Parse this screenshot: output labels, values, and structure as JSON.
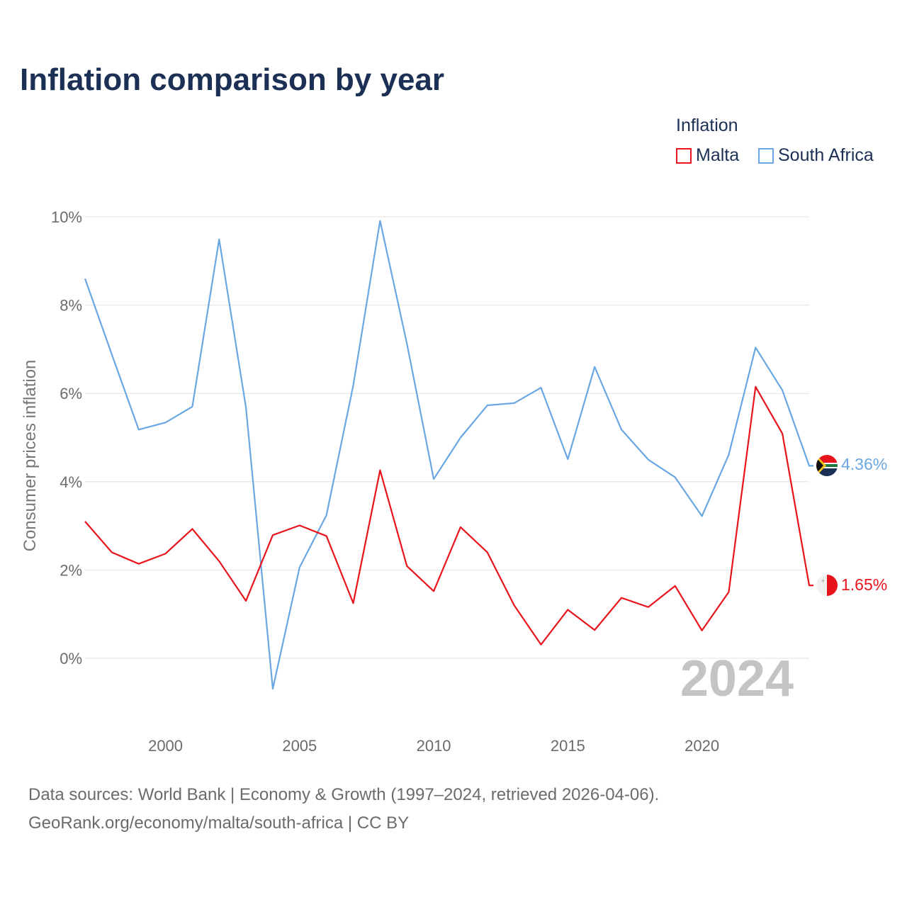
{
  "chart_data": {
    "type": "line",
    "title": "Inflation comparison by year",
    "legend_title": "Inflation",
    "ylabel": "Consumer prices inflation",
    "xlabel": "",
    "x": [
      1997,
      1998,
      1999,
      2000,
      2001,
      2002,
      2003,
      2004,
      2005,
      2006,
      2007,
      2008,
      2009,
      2010,
      2011,
      2012,
      2013,
      2014,
      2015,
      2016,
      2017,
      2018,
      2019,
      2020,
      2021,
      2022,
      2023,
      2024
    ],
    "series": [
      {
        "name": "Malta",
        "color": "#e8141c",
        "values": [
          3.1,
          2.4,
          2.14,
          2.37,
          2.93,
          2.2,
          1.3,
          2.79,
          3.01,
          2.77,
          1.25,
          4.26,
          2.09,
          1.52,
          2.97,
          2.4,
          1.2,
          0.31,
          1.1,
          0.64,
          1.37,
          1.16,
          1.64,
          0.63,
          1.5,
          6.15,
          5.09,
          1.65
        ],
        "end_label": "1.65%"
      },
      {
        "name": "South Africa",
        "color": "#6aa7e2",
        "values": [
          8.6,
          6.88,
          5.18,
          5.34,
          5.7,
          9.49,
          5.68,
          -0.69,
          2.06,
          3.24,
          6.18,
          9.91,
          7.13,
          4.06,
          5.0,
          5.73,
          5.78,
          6.13,
          4.51,
          6.6,
          5.18,
          4.5,
          4.1,
          3.22,
          4.61,
          7.04,
          6.07,
          4.36
        ],
        "end_label": "4.36%"
      }
    ],
    "xlim": [
      1997,
      2024
    ],
    "ylim": [
      -1.5,
      10
    ],
    "y_ticks": [
      0,
      2,
      4,
      6,
      8,
      10
    ],
    "y_tick_labels": [
      "0%",
      "2%",
      "4%",
      "6%",
      "8%",
      "10%"
    ],
    "x_ticks": [
      2000,
      2005,
      2010,
      2015,
      2020
    ],
    "x_tick_labels": [
      "2000",
      "2005",
      "2010",
      "2015",
      "2020"
    ],
    "year_watermark": "2024",
    "legend_position": "top-right",
    "grid": true
  },
  "footer": {
    "line1": "Data sources: World Bank | Economy & Growth (1997–2024, retrieved 2026-04-06).",
    "line2": "GeoRank.org/economy/malta/south-africa | CC BY"
  },
  "flags": {
    "malta_icon": "malta-flag-icon",
    "south_africa_icon": "south-africa-flag-icon"
  }
}
